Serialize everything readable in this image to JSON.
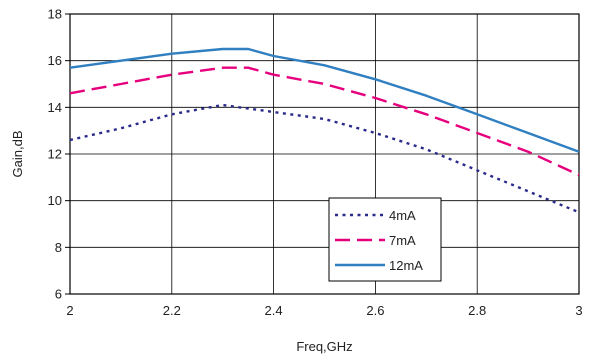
{
  "chart_data": {
    "type": "line",
    "title": "",
    "xlabel": "Freq,GHz",
    "ylabel": "Gain,dB",
    "xlim": [
      2,
      3
    ],
    "ylim": [
      6,
      18
    ],
    "xticks": [
      "2",
      "2.2",
      "2.4",
      "2.6",
      "2.8",
      "3"
    ],
    "yticks": [
      "6",
      "8",
      "10",
      "12",
      "14",
      "16",
      "18"
    ],
    "grid": true,
    "legend_position": "bottom-center",
    "series": [
      {
        "name": "4mA",
        "color": "#2b2b8c",
        "dash": "dotted",
        "x": [
          2.0,
          2.1,
          2.2,
          2.3,
          2.4,
          2.5,
          2.6,
          2.7,
          2.8,
          2.9,
          3.0
        ],
        "y": [
          12.6,
          13.1,
          13.7,
          14.1,
          13.8,
          13.5,
          12.9,
          12.2,
          11.3,
          10.4,
          9.5
        ]
      },
      {
        "name": "7mA",
        "color": "#e6007e",
        "dash": "dashed",
        "x": [
          2.0,
          2.1,
          2.2,
          2.3,
          2.35,
          2.4,
          2.5,
          2.6,
          2.7,
          2.8,
          2.9,
          3.0
        ],
        "y": [
          14.6,
          15.0,
          15.4,
          15.7,
          15.7,
          15.4,
          15.0,
          14.4,
          13.7,
          12.9,
          12.1,
          11.1
        ]
      },
      {
        "name": "12mA",
        "color": "#2f7fc1",
        "dash": "solid",
        "x": [
          2.0,
          2.1,
          2.2,
          2.3,
          2.35,
          2.4,
          2.5,
          2.6,
          2.7,
          2.8,
          2.9,
          3.0
        ],
        "y": [
          15.7,
          16.0,
          16.3,
          16.5,
          16.5,
          16.2,
          15.8,
          15.2,
          14.5,
          13.7,
          12.9,
          12.1
        ]
      }
    ]
  }
}
